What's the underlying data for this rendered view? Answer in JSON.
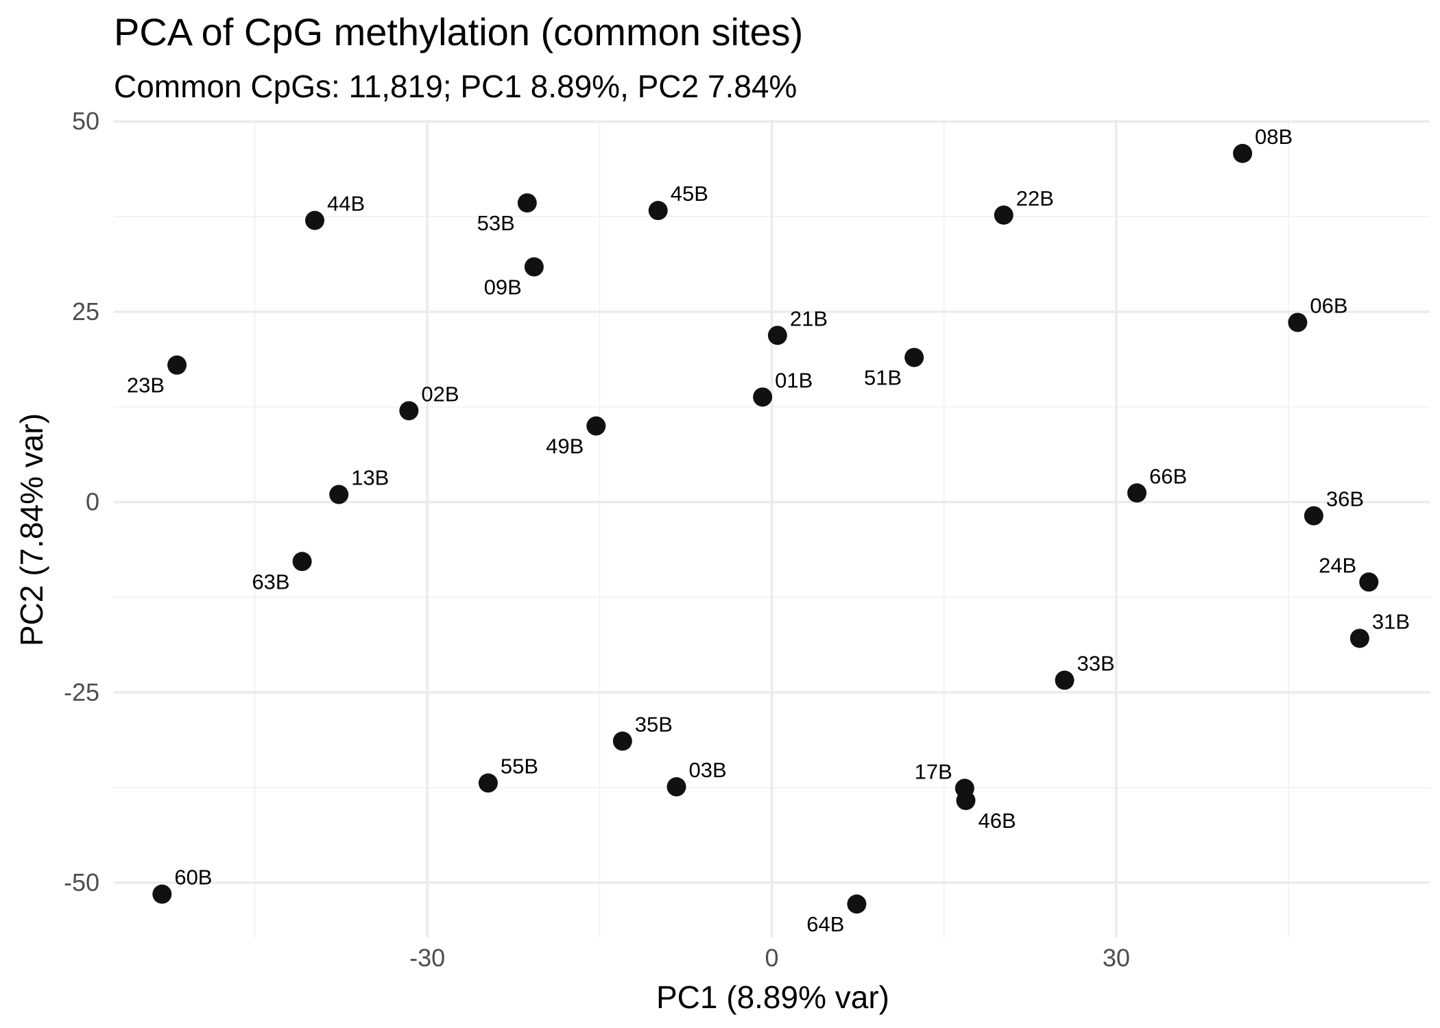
{
  "chart_data": {
    "type": "scatter",
    "title": "PCA of CpG methylation (common sites)",
    "subtitle": "Common CpGs: 11,819; PC1 8.89%, PC2 7.84%",
    "xlabel": "PC1 (8.89% var)",
    "ylabel": "PC2 (7.84% var)",
    "xlim": [
      -57.3,
      57.3
    ],
    "ylim": [
      -57.2,
      50.2
    ],
    "x_ticks": [
      -30,
      0,
      30
    ],
    "x_tick_labels": [
      "-30",
      "0",
      "30"
    ],
    "y_ticks": [
      -50,
      -25,
      0,
      25,
      50
    ],
    "y_tick_labels": [
      "-50",
      "-25",
      "0",
      "25",
      "50"
    ],
    "grid": true,
    "marker_color": "#111111",
    "points": [
      {
        "label": "08B",
        "x": 41.0,
        "y": 45.8,
        "side": "ur"
      },
      {
        "label": "44B",
        "x": -39.8,
        "y": 37.0,
        "side": "ur"
      },
      {
        "label": "53B",
        "x": -21.3,
        "y": 39.3,
        "side": "ll"
      },
      {
        "label": "45B",
        "x": -9.9,
        "y": 38.3,
        "side": "ur"
      },
      {
        "label": "22B",
        "x": 20.2,
        "y": 37.7,
        "side": "ur"
      },
      {
        "label": "09B",
        "x": -20.7,
        "y": 30.9,
        "side": "ll"
      },
      {
        "label": "06B",
        "x": 45.8,
        "y": 23.6,
        "side": "ur"
      },
      {
        "label": "21B",
        "x": 0.5,
        "y": 21.9,
        "side": "ur"
      },
      {
        "label": "51B",
        "x": 12.4,
        "y": 19.0,
        "side": "ll"
      },
      {
        "label": "23B",
        "x": -51.8,
        "y": 18.0,
        "side": "ll"
      },
      {
        "label": "01B",
        "x": -0.8,
        "y": 13.8,
        "side": "ur"
      },
      {
        "label": "02B",
        "x": -31.6,
        "y": 12.0,
        "side": "ur"
      },
      {
        "label": "49B",
        "x": -15.3,
        "y": 10.0,
        "side": "ll"
      },
      {
        "label": "13B",
        "x": -37.7,
        "y": 1.0,
        "side": "ur"
      },
      {
        "label": "66B",
        "x": 31.8,
        "y": 1.2,
        "side": "ur"
      },
      {
        "label": "36B",
        "x": 47.2,
        "y": -1.8,
        "side": "ur"
      },
      {
        "label": "63B",
        "x": -40.9,
        "y": -7.8,
        "side": "ll"
      },
      {
        "label": "24B",
        "x": 52.0,
        "y": -10.5,
        "side": "ul"
      },
      {
        "label": "31B",
        "x": 51.2,
        "y": -17.9,
        "side": "ur"
      },
      {
        "label": "33B",
        "x": 25.5,
        "y": -23.4,
        "side": "ur"
      },
      {
        "label": "35B",
        "x": -13.0,
        "y": -31.4,
        "side": "ur"
      },
      {
        "label": "55B",
        "x": -24.7,
        "y": -36.9,
        "side": "ur"
      },
      {
        "label": "03B",
        "x": -8.3,
        "y": -37.4,
        "side": "ur"
      },
      {
        "label": "17B",
        "x": 16.8,
        "y": -37.6,
        "side": "ul"
      },
      {
        "label": "46B",
        "x": 16.9,
        "y": -39.2,
        "side": "lr"
      },
      {
        "label": "60B",
        "x": -53.1,
        "y": -51.5,
        "side": "ur"
      },
      {
        "label": "64B",
        "x": 7.4,
        "y": -52.8,
        "side": "ll"
      }
    ]
  }
}
